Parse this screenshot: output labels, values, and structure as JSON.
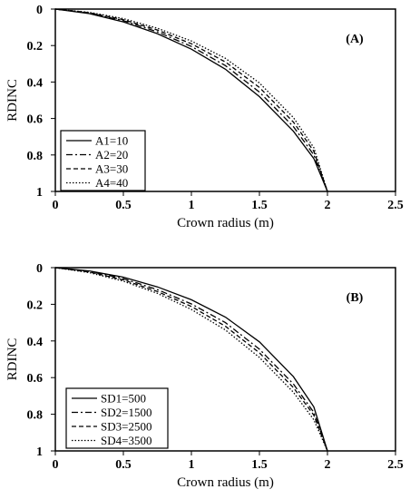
{
  "chart_data": [
    {
      "type": "line",
      "panel_label": "(A)",
      "xlabel": "Crown radius (m)",
      "ylabel": "RDINC",
      "xlim": [
        0,
        2.5
      ],
      "ylim": [
        0,
        1
      ],
      "y_inverted": true,
      "xticks": [
        "0",
        "0.5",
        "1",
        "1.5",
        "2",
        "2.5"
      ],
      "yticks": [
        "0",
        "0.2",
        "0.4",
        "0.6",
        "0.8",
        "1"
      ],
      "legend_position": "bottom-left",
      "series": [
        {
          "name": "A1=10",
          "style": "solid",
          "x": [
            0,
            0.25,
            0.5,
            0.75,
            1.0,
            1.25,
            1.5,
            1.75,
            1.9,
            2.0
          ],
          "y": [
            0,
            0.025,
            0.07,
            0.135,
            0.22,
            0.33,
            0.48,
            0.67,
            0.82,
            1.0
          ]
        },
        {
          "name": "A2=20",
          "style": "dash-dot",
          "x": [
            0,
            0.25,
            0.5,
            0.75,
            1.0,
            1.25,
            1.5,
            1.75,
            1.9,
            2.0
          ],
          "y": [
            0,
            0.022,
            0.063,
            0.125,
            0.205,
            0.31,
            0.455,
            0.645,
            0.8,
            1.0
          ]
        },
        {
          "name": "A3=30",
          "style": "dashed",
          "x": [
            0,
            0.25,
            0.5,
            0.75,
            1.0,
            1.25,
            1.5,
            1.75,
            1.9,
            2.0
          ],
          "y": [
            0,
            0.02,
            0.058,
            0.115,
            0.19,
            0.29,
            0.43,
            0.62,
            0.78,
            1.0
          ]
        },
        {
          "name": "A4=40",
          "style": "dotted",
          "x": [
            0,
            0.25,
            0.5,
            0.75,
            1.0,
            1.25,
            1.5,
            1.75,
            1.9,
            2.0
          ],
          "y": [
            0,
            0.018,
            0.052,
            0.105,
            0.175,
            0.27,
            0.405,
            0.595,
            0.76,
            1.0
          ]
        }
      ]
    },
    {
      "type": "line",
      "panel_label": "(B)",
      "xlabel": "Crown radius (m)",
      "ylabel": "RDINC",
      "xlim": [
        0,
        2.5
      ],
      "ylim": [
        0,
        1
      ],
      "y_inverted": true,
      "xticks": [
        "0",
        "0.5",
        "1",
        "1.5",
        "2",
        "2.5"
      ],
      "yticks": [
        "0",
        "0.2",
        "0.4",
        "0.6",
        "0.8",
        "1"
      ],
      "legend_position": "bottom-left",
      "series": [
        {
          "name": "SD1=500",
          "style": "solid",
          "x": [
            0,
            0.25,
            0.5,
            0.75,
            1.0,
            1.25,
            1.5,
            1.75,
            1.9,
            2.0
          ],
          "y": [
            0,
            0.018,
            0.052,
            0.105,
            0.175,
            0.27,
            0.405,
            0.595,
            0.76,
            1.0
          ]
        },
        {
          "name": "SD2=1500",
          "style": "dash-dot",
          "x": [
            0,
            0.25,
            0.5,
            0.75,
            1.0,
            1.25,
            1.5,
            1.75,
            1.9,
            2.0
          ],
          "y": [
            0,
            0.021,
            0.06,
            0.12,
            0.198,
            0.3,
            0.445,
            0.635,
            0.79,
            1.0
          ]
        },
        {
          "name": "SD3=2500",
          "style": "dashed",
          "x": [
            0,
            0.25,
            0.5,
            0.75,
            1.0,
            1.25,
            1.5,
            1.75,
            1.9,
            2.0
          ],
          "y": [
            0,
            0.024,
            0.067,
            0.13,
            0.212,
            0.32,
            0.465,
            0.655,
            0.805,
            1.0
          ]
        },
        {
          "name": "SD4=3500",
          "style": "dotted",
          "x": [
            0,
            0.25,
            0.5,
            0.75,
            1.0,
            1.25,
            1.5,
            1.75,
            1.9,
            2.0
          ],
          "y": [
            0,
            0.027,
            0.074,
            0.14,
            0.228,
            0.34,
            0.49,
            0.68,
            0.83,
            1.0
          ]
        }
      ]
    }
  ]
}
